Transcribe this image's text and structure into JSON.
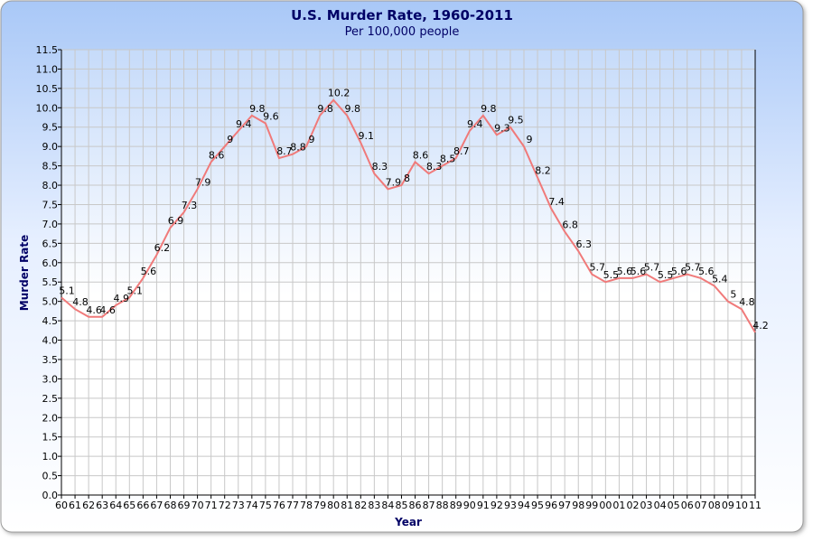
{
  "chart_data": {
    "type": "line",
    "title": "U.S. Murder Rate, 1960-2011",
    "subtitle": "Per 100,000 people",
    "xlabel": "Year",
    "ylabel": "Murder Rate",
    "ylim": [
      0,
      11.5
    ],
    "ytick_step": 0.5,
    "grid": true,
    "legend": "none",
    "x": [
      "60",
      "61",
      "62",
      "63",
      "64",
      "65",
      "66",
      "67",
      "68",
      "69",
      "70",
      "71",
      "72",
      "73",
      "74",
      "75",
      "76",
      "77",
      "78",
      "79",
      "80",
      "81",
      "82",
      "83",
      "84",
      "85",
      "86",
      "87",
      "88",
      "89",
      "90",
      "91",
      "92",
      "93",
      "94",
      "95",
      "96",
      "97",
      "98",
      "99",
      "00",
      "01",
      "02",
      "03",
      "04",
      "05",
      "06",
      "07",
      "08",
      "09",
      "10",
      "11"
    ],
    "series": [
      {
        "name": "Murder Rate",
        "color": "#f07a7a",
        "values": [
          5.1,
          4.8,
          4.6,
          4.6,
          4.9,
          5.1,
          5.6,
          6.2,
          6.9,
          7.3,
          7.9,
          8.6,
          9,
          9.4,
          9.8,
          9.6,
          8.7,
          8.8,
          9,
          9.8,
          10.2,
          9.8,
          9.1,
          8.3,
          7.9,
          8,
          8.6,
          8.3,
          8.5,
          8.7,
          9.4,
          9.8,
          9.3,
          9.5,
          9,
          8.2,
          7.4,
          6.8,
          6.3,
          5.7,
          5.5,
          5.6,
          5.6,
          5.7,
          5.5,
          5.6,
          5.7,
          5.6,
          5.4,
          5,
          4.8,
          4.2
        ]
      }
    ]
  },
  "colors": {
    "title": "#000066",
    "panel_top": "#a9c8f5",
    "grid": "#c8c8c8"
  }
}
